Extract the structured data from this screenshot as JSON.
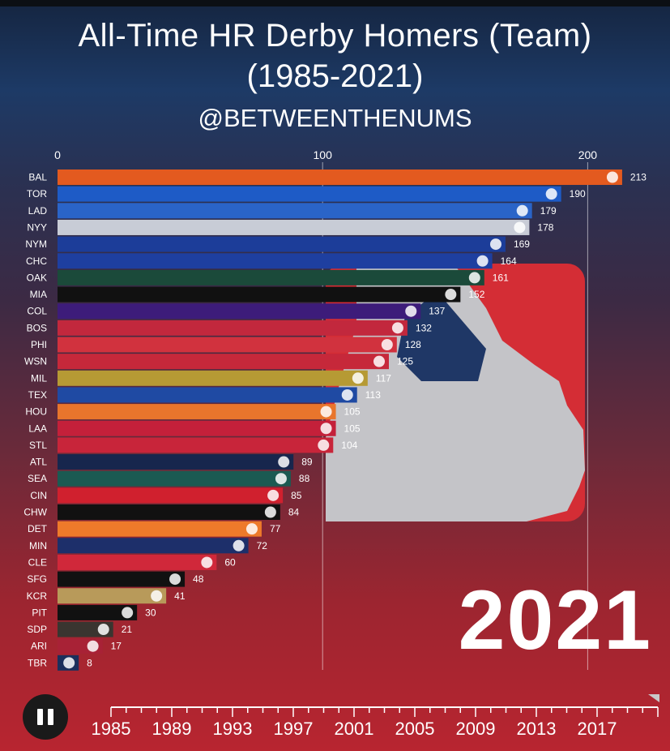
{
  "header": {
    "title": "All-Time HR Derby Homers (Team)",
    "subtitle": "(1985-2021)",
    "handle": "@BETWEENTHENUMS"
  },
  "current_year": "2021",
  "controls": {
    "pause_icon": "pause-icon"
  },
  "colors": {
    "background_top": "#1d3a66",
    "background_bottom": "#b82530",
    "logo_red": "#d42d35",
    "logo_silver": "#c4c4c8"
  },
  "chart_data": {
    "type": "bar",
    "orientation": "horizontal",
    "title": "All-Time HR Derby Homers (Team)",
    "xlim": [
      0,
      213
    ],
    "x_ticks": [
      0,
      100,
      200
    ],
    "gridline_at": [
      100,
      200
    ],
    "categories": [
      "BAL",
      "TOR",
      "LAD",
      "NYY",
      "NYM",
      "CHC",
      "OAK",
      "MIA",
      "COL",
      "BOS",
      "PHI",
      "WSN",
      "MIL",
      "TEX",
      "HOU",
      "LAA",
      "STL",
      "ATL",
      "SEA",
      "CIN",
      "CHW",
      "DET",
      "MIN",
      "CLE",
      "SFG",
      "KCR",
      "PIT",
      "SDP",
      "ARI",
      "TBR"
    ],
    "values": [
      213,
      190,
      179,
      178,
      169,
      164,
      161,
      152,
      137,
      132,
      128,
      125,
      117,
      113,
      105,
      105,
      104,
      89,
      88,
      85,
      84,
      77,
      72,
      60,
      48,
      41,
      30,
      21,
      17,
      8
    ],
    "bar_colors": [
      "#e35a1f",
      "#1e5bc6",
      "#2a64c8",
      "#c8ccd6",
      "#1c3d99",
      "#1e3fa0",
      "#1b4a3a",
      "#111111",
      "#3d1c7a",
      "#c2283d",
      "#d1323e",
      "#c6283a",
      "#b69a34",
      "#1f4aa3",
      "#e8752c",
      "#c4203a",
      "#c8253a",
      "#17264d",
      "#1b5a52",
      "#d0202e",
      "#111111",
      "#ee7a2a",
      "#1d2f6a",
      "#d0283a",
      "#111111",
      "#b89a5a",
      "#111111",
      "#3a3530",
      "#a82236",
      "#1b2f5c"
    ],
    "timeline": {
      "ticks": [
        "1985",
        "1989",
        "1993",
        "1997",
        "2001",
        "2005",
        "2009",
        "2013",
        "2017"
      ]
    }
  }
}
